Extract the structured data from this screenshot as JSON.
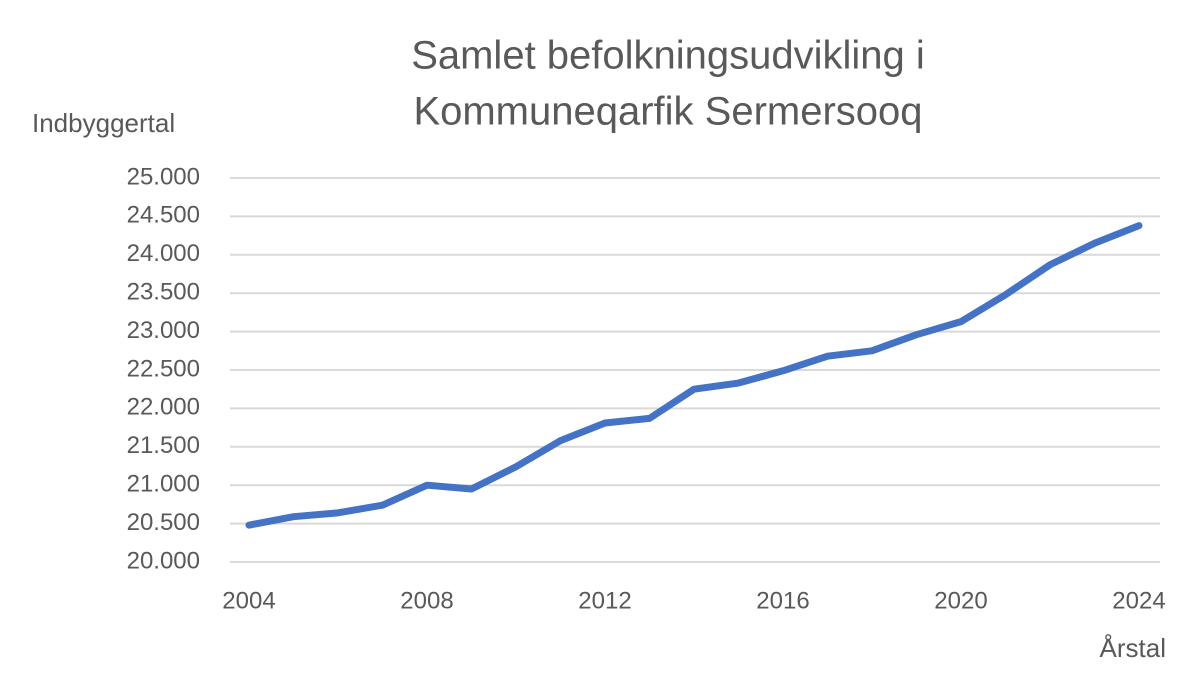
{
  "chart_data": {
    "type": "line",
    "title": [
      "Samlet befolkningsudvikling i",
      "Kommuneqarfik Sermersooq"
    ],
    "y_label": "Indbyggertal",
    "x_label": "Årstal",
    "x": [
      2004,
      2005,
      2006,
      2007,
      2008,
      2009,
      2010,
      2011,
      2012,
      2013,
      2014,
      2015,
      2016,
      2017,
      2018,
      2019,
      2020,
      2021,
      2022,
      2023,
      2024
    ],
    "values": [
      20480,
      20590,
      20640,
      20740,
      21000,
      20950,
      21240,
      21580,
      21810,
      21870,
      22250,
      22330,
      22490,
      22680,
      22750,
      22960,
      23130,
      23480,
      23870,
      24150,
      24380
    ],
    "color": "#4472c4",
    "xlim": [
      2004,
      2024
    ],
    "xticks": [
      2004,
      2008,
      2012,
      2016,
      2020,
      2024
    ],
    "ylim": [
      20000,
      25000
    ],
    "yticks": [
      {
        "value": 20000,
        "label": "20.000"
      },
      {
        "value": 20500,
        "label": "20.500"
      },
      {
        "value": 21000,
        "label": "21.000"
      },
      {
        "value": 21500,
        "label": "21.500"
      },
      {
        "value": 22000,
        "label": "22.000"
      },
      {
        "value": 22500,
        "label": "22.500"
      },
      {
        "value": 23000,
        "label": "23.000"
      },
      {
        "value": 23500,
        "label": "23.500"
      },
      {
        "value": 24000,
        "label": "24.000"
      },
      {
        "value": 24500,
        "label": "24.500"
      },
      {
        "value": 25000,
        "label": "25.000"
      }
    ],
    "grid": true
  }
}
